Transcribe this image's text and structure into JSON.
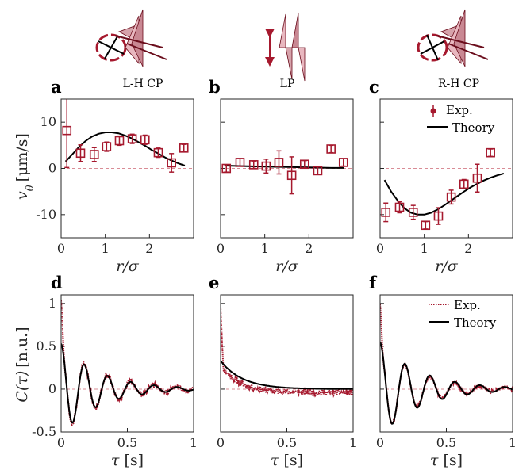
{
  "colors": {
    "exp": "#a6192e",
    "theory": "#000000",
    "zero_line": "#d98c96",
    "axis": "#262626"
  },
  "illustrations": [
    {
      "label": "L-H CP",
      "icon": "left-handed-circular-polarization-icon"
    },
    {
      "label": "LP",
      "icon": "linear-polarization-icon"
    },
    {
      "label": "R-H CP",
      "icon": "right-handed-circular-polarization-icon"
    }
  ],
  "top_row": {
    "ylabel_var": "v",
    "ylabel_sub": "θ",
    "ylabel_unit": "[μm/s]",
    "xlabel_var": "r/σ",
    "xticks": [
      "0",
      "1",
      "2"
    ],
    "yticks": [
      "10",
      "0",
      "-10"
    ]
  },
  "bottom_row": {
    "ylabel_var": "C(τ)",
    "ylabel_unit": "[n.u.]",
    "xlabel_var": "τ",
    "xlabel_unit": "[s]",
    "xticks": [
      "0",
      "0.5",
      "1"
    ],
    "yticks": [
      "1",
      "0.5",
      "0",
      "-0.5"
    ]
  },
  "legend_top": {
    "exp": "Exp.",
    "theory": "Theory"
  },
  "legend_bottom": {
    "exp": "Exp.",
    "theory": "Theory"
  },
  "chart_data": [
    {
      "panel": "a",
      "type": "scatter",
      "xlim": [
        0,
        3
      ],
      "ylim": [
        -15,
        15
      ],
      "exp": {
        "x": [
          0.13,
          0.44,
          0.75,
          1.03,
          1.32,
          1.61,
          1.9,
          2.2,
          2.5,
          2.78
        ],
        "y": [
          8.2,
          3.3,
          3.0,
          4.7,
          6.0,
          6.4,
          6.2,
          3.4,
          1.2,
          4.4
        ],
        "err": [
          8.0,
          1.8,
          1.5,
          1.0,
          1.0,
          1.0,
          1.0,
          1.0,
          2.0,
          0.8
        ]
      },
      "theory": {
        "x": [
          0.1,
          0.25,
          0.4,
          0.55,
          0.7,
          0.85,
          1.0,
          1.15,
          1.3,
          1.45,
          1.6,
          1.75,
          1.9,
          2.05,
          2.2,
          2.35,
          2.5,
          2.65,
          2.8
        ],
        "y": [
          1.5,
          3.0,
          4.6,
          5.9,
          6.9,
          7.5,
          7.8,
          7.8,
          7.6,
          7.1,
          6.5,
          5.7,
          4.9,
          4.0,
          3.2,
          2.4,
          1.7,
          1.1,
          0.6
        ]
      }
    },
    {
      "panel": "b",
      "type": "scatter",
      "xlim": [
        0,
        3
      ],
      "ylim": [
        -15,
        15
      ],
      "exp": {
        "x": [
          0.13,
          0.44,
          0.75,
          1.03,
          1.32,
          1.61,
          1.9,
          2.2,
          2.5,
          2.78
        ],
        "y": [
          0.0,
          1.3,
          0.8,
          0.5,
          1.3,
          -1.5,
          0.9,
          -0.5,
          4.2,
          1.3
        ],
        "err": [
          0.8,
          0.8,
          0.8,
          1.5,
          2.5,
          4.0,
          0.8,
          0.8,
          0.8,
          0.8
        ]
      },
      "theory": {
        "x": [
          0.1,
          0.5,
          1.0,
          1.5,
          2.0,
          2.5,
          2.8
        ],
        "y": [
          0.6,
          0.5,
          0.4,
          0.3,
          0.2,
          0.1,
          0.1
        ]
      }
    },
    {
      "panel": "c",
      "type": "scatter",
      "xlim": [
        0,
        3
      ],
      "ylim": [
        -15,
        15
      ],
      "exp": {
        "x": [
          0.13,
          0.44,
          0.75,
          1.03,
          1.32,
          1.61,
          1.9,
          2.2,
          2.5
        ],
        "y": [
          -9.5,
          -8.4,
          -9.5,
          -12.3,
          -10.3,
          -6.2,
          -3.4,
          -2.1,
          3.4
        ],
        "err": [
          2.0,
          1.2,
          1.5,
          0.8,
          1.8,
          1.5,
          1.0,
          3.0,
          0.8
        ]
      },
      "theory": {
        "x": [
          0.1,
          0.25,
          0.4,
          0.55,
          0.7,
          0.85,
          1.0,
          1.15,
          1.3,
          1.45,
          1.6,
          1.75,
          1.9,
          2.05,
          2.2,
          2.35,
          2.5,
          2.65,
          2.8
        ],
        "y": [
          -2.5,
          -5.0,
          -7.0,
          -8.6,
          -9.6,
          -10.0,
          -10.0,
          -9.6,
          -8.9,
          -8.0,
          -7.0,
          -6.0,
          -5.0,
          -4.1,
          -3.3,
          -2.6,
          -2.0,
          -1.5,
          -1.1
        ]
      }
    },
    {
      "panel": "d",
      "type": "line",
      "xlim": [
        0,
        1
      ],
      "ylim": [
        -0.5,
        1.1
      ],
      "exp_model": {
        "amp": 0.55,
        "decay": 3.5,
        "freq_hz": 5.7,
        "phase": 0.0,
        "offset": 0.0,
        "spike": 0.5,
        "noise": 0.03,
        "seed": 3
      },
      "theory_model": {
        "amp": 0.53,
        "decay": 3.5,
        "freq_hz": 5.7,
        "phase": 0.0,
        "offset": 0.0
      }
    },
    {
      "panel": "e",
      "type": "line",
      "xlim": [
        0,
        1
      ],
      "ylim": [
        -0.5,
        1.1
      ],
      "exp_model": {
        "amp": 0.28,
        "decay": 7.0,
        "freq_hz": 0.0,
        "phase": 0.0,
        "offset": -0.04,
        "spike": 0.7,
        "noise": 0.035,
        "seed": 11
      },
      "theory_model": {
        "amp": 0.33,
        "decay": 6.0,
        "freq_hz": 0.0,
        "phase": 0.0,
        "offset": 0.0
      }
    },
    {
      "panel": "f",
      "type": "line",
      "xlim": [
        0,
        1
      ],
      "ylim": [
        -0.5,
        1.1
      ],
      "exp_model": {
        "amp": 0.55,
        "decay": 3.5,
        "freq_hz": 5.3,
        "phase": 0.0,
        "offset": 0.0,
        "spike": 0.45,
        "noise": 0.02,
        "seed": 7
      },
      "theory_model": {
        "amp": 0.55,
        "decay": 3.3,
        "freq_hz": 5.3,
        "phase": 0.0,
        "offset": 0.0
      }
    }
  ]
}
